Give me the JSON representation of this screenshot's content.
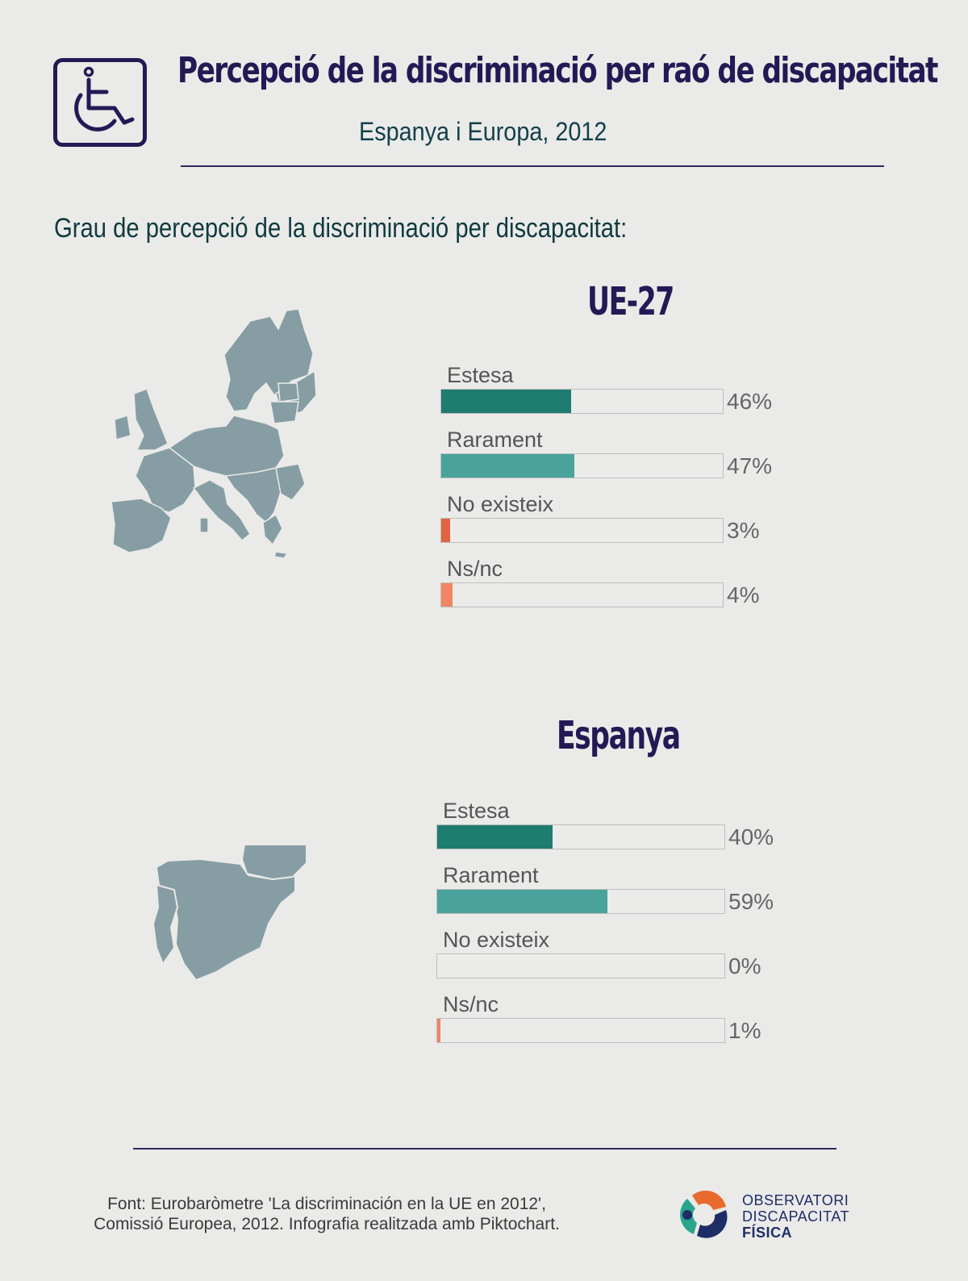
{
  "header": {
    "title": "Percepció de la discriminació per raó de discapacitat",
    "subtitle": "Espanya i Europa, 2012",
    "icon": "wheelchair-icon"
  },
  "section_heading": "Grau de percepció de la discriminació per discapacitat:",
  "colors": {
    "Estesa": "#1f7c70",
    "Rarament": "#49a39b",
    "No existeix": "#e0643f",
    "Ns/nc": "#f08563",
    "title": "#231a55",
    "map": "#869da3"
  },
  "chart_data": [
    {
      "type": "bar",
      "orientation": "horizontal",
      "title": "UE-27",
      "categories": [
        "Estesa",
        "Rarament",
        "No existeix",
        "Ns/nc"
      ],
      "values": [
        46,
        47,
        3,
        4
      ],
      "value_labels": [
        "46%",
        "47%",
        "3%",
        "4%"
      ],
      "xlim": [
        0,
        100
      ],
      "grid": false
    },
    {
      "type": "bar",
      "orientation": "horizontal",
      "title": "Espanya",
      "categories": [
        "Estesa",
        "Rarament",
        "No existeix",
        "Ns/nc"
      ],
      "values": [
        40,
        59,
        0,
        1
      ],
      "value_labels": [
        "40%",
        "59%",
        "0%",
        "1%"
      ],
      "xlim": [
        0,
        100
      ],
      "grid": false
    }
  ],
  "footer": {
    "source_line1": "Font: Eurobaròmetre 'La discriminación en la UE en 2012',",
    "source_line2": "Comissió Europea, 2012. Infografia realitzada amb Piktochart.",
    "logo_line1": "OBSERVATORI",
    "logo_line2": "DISCAPACITAT",
    "logo_line3": "FÍSICA"
  }
}
